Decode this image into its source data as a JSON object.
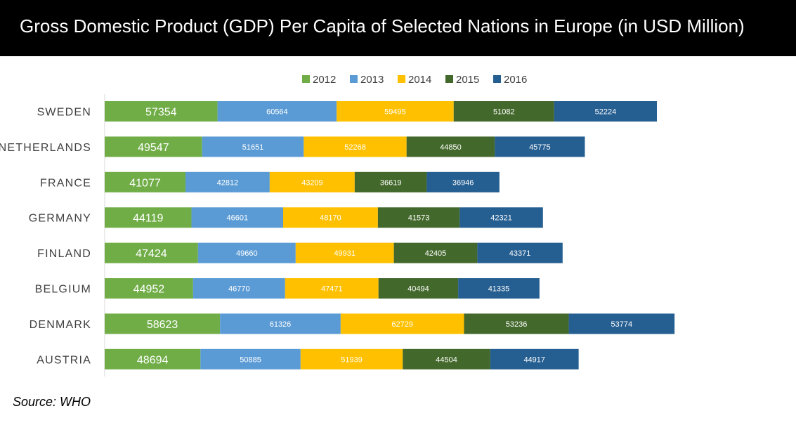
{
  "title": "Gross Domestic Product (GDP) Per Capita of Selected Nations in Europe (in USD Million)",
  "source": "Source: WHO",
  "chart_data": {
    "type": "bar",
    "orientation": "horizontal",
    "stacked": true,
    "title": "Gross Domestic Product (GDP) Per Capita of Selected Nations in Europe (in USD Million)",
    "xlabel": "",
    "ylabel": "",
    "legend_position": "top",
    "grid": false,
    "categories": [
      "SWEDEN",
      "NETHERLANDS",
      "FRANCE",
      "GERMANY",
      "FINLAND",
      "BELGIUM",
      "DENMARK",
      "AUSTRIA"
    ],
    "series": [
      {
        "name": "2012",
        "color": "#70ad47",
        "values": [
          57354,
          49547,
          41077,
          44119,
          47424,
          44952,
          58623,
          48694
        ]
      },
      {
        "name": "2013",
        "color": "#5b9bd5",
        "values": [
          60564,
          51651,
          42812,
          46601,
          49660,
          46770,
          61326,
          50885
        ]
      },
      {
        "name": "2014",
        "color": "#ffc000",
        "values": [
          59495,
          52268,
          43209,
          48170,
          49931,
          47471,
          62729,
          51939
        ]
      },
      {
        "name": "2015",
        "color": "#43682b",
        "values": [
          51082,
          44850,
          36619,
          41573,
          42405,
          40494,
          53236,
          44504
        ]
      },
      {
        "name": "2016",
        "color": "#255e91",
        "values": [
          52224,
          45775,
          36946,
          42321,
          43371,
          41335,
          53774,
          44917
        ]
      }
    ],
    "xlim": [
      0,
      320000
    ]
  }
}
